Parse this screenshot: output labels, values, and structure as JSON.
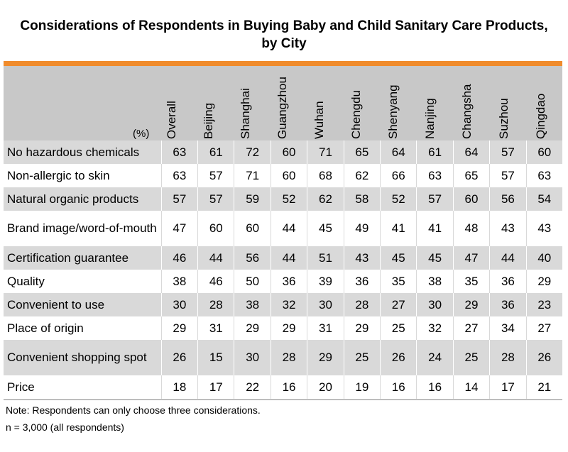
{
  "title_line1": "Considerations of Respondents in Buying Baby and Child Sanitary Care Products,",
  "title_line2": "by City",
  "unit_label": "(%)",
  "columns": [
    "Overall",
    "Beijing",
    "Shanghai",
    "Guangzhou",
    "Wuhan",
    "Chengdu",
    "Shenyang",
    "Nanjing",
    "Changsha",
    "Suzhou",
    "Qingdao"
  ],
  "rows": [
    {
      "label": "No hazardous chemicals",
      "values": [
        "63",
        "61",
        "72",
        "60",
        "71",
        "65",
        "64",
        "61",
        "64",
        "57",
        "60"
      ]
    },
    {
      "label": "Non-allergic to skin",
      "values": [
        "63",
        "57",
        "71",
        "60",
        "68",
        "62",
        "66",
        "63",
        "65",
        "57",
        "63"
      ]
    },
    {
      "label": "Natural organic products",
      "values": [
        "57",
        "57",
        "59",
        "52",
        "62",
        "58",
        "52",
        "57",
        "60",
        "56",
        "54"
      ]
    },
    {
      "label": "Brand image/word-of-mouth",
      "values": [
        "47",
        "60",
        "60",
        "44",
        "45",
        "49",
        "41",
        "41",
        "48",
        "43",
        "43"
      ]
    },
    {
      "label": "Certification guarantee",
      "values": [
        "46",
        "44",
        "56",
        "44",
        "51",
        "43",
        "45",
        "45",
        "47",
        "44",
        "40"
      ]
    },
    {
      "label": "Quality",
      "values": [
        "38",
        "46",
        "50",
        "36",
        "39",
        "36",
        "35",
        "38",
        "35",
        "36",
        "29"
      ]
    },
    {
      "label": "Convenient to use",
      "values": [
        "30",
        "28",
        "38",
        "32",
        "30",
        "28",
        "27",
        "30",
        "29",
        "36",
        "23"
      ]
    },
    {
      "label": "Place of origin",
      "values": [
        "29",
        "31",
        "29",
        "29",
        "31",
        "29",
        "25",
        "32",
        "27",
        "34",
        "27"
      ]
    },
    {
      "label": "Convenient shopping spot",
      "values": [
        "26",
        "15",
        "30",
        "28",
        "29",
        "25",
        "26",
        "24",
        "25",
        "28",
        "26"
      ]
    },
    {
      "label": "Price",
      "values": [
        "18",
        "17",
        "22",
        "16",
        "20",
        "19",
        "16",
        "16",
        "14",
        "17",
        "21"
      ]
    }
  ],
  "note": "Note: Respondents can only choose three considerations.",
  "sample": "n = 3,000 (all respondents)",
  "colors": {
    "accent": "#f08b2b",
    "header_bg": "#c8c8c8",
    "stripe": "#d9d9d9"
  }
}
